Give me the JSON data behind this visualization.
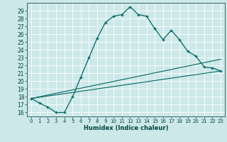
{
  "xlabel": "Humidex (Indice chaleur)",
  "background_color": "#cde8e8",
  "grid_color": "#ffffff",
  "line_color": "#006666",
  "xlim": [
    -0.5,
    23.5
  ],
  "ylim": [
    15.5,
    30.0
  ],
  "xticks": [
    0,
    1,
    2,
    3,
    4,
    5,
    6,
    7,
    8,
    9,
    10,
    11,
    12,
    13,
    14,
    15,
    16,
    17,
    18,
    19,
    20,
    21,
    22,
    23
  ],
  "yticks": [
    16,
    17,
    18,
    19,
    20,
    21,
    22,
    23,
    24,
    25,
    26,
    27,
    28,
    29
  ],
  "line1_x": [
    0,
    1,
    2,
    3,
    4,
    5,
    6,
    7,
    8,
    9,
    10,
    11,
    12,
    13,
    14,
    15,
    16,
    17,
    18,
    19,
    20,
    21,
    22,
    23
  ],
  "line1_y": [
    17.8,
    17.2,
    16.7,
    16.0,
    16.0,
    18.0,
    20.5,
    23.0,
    25.5,
    27.5,
    28.3,
    28.5,
    29.5,
    28.5,
    28.3,
    26.7,
    25.3,
    26.5,
    25.3,
    23.8,
    23.2,
    21.8,
    21.7,
    21.3
  ],
  "line2_x": [
    0,
    23
  ],
  "line2_y": [
    17.8,
    21.3
  ],
  "line3_x": [
    0,
    23
  ],
  "line3_y": [
    17.8,
    22.8
  ]
}
